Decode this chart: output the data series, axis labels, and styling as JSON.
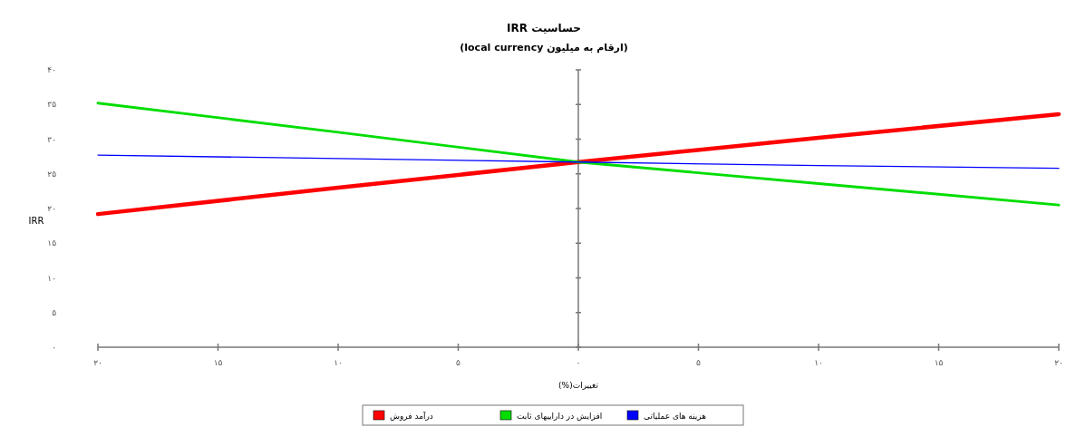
{
  "chart_data": {
    "type": "line",
    "title": "حساسیت IRR",
    "subtitle": "(ارقام به میلیون local currency)",
    "xlabel": "تغییرات(%)",
    "ylabel": "IRR",
    "x": [
      -20,
      -10,
      0,
      10,
      20
    ],
    "series": [
      {
        "name": "درآمد فروش",
        "color": "#ff0000",
        "values": [
          19.2,
          23.0,
          26.7,
          30.2,
          33.6
        ]
      },
      {
        "name": "افزایش در داراییهای ثابت",
        "color": "#00dd00",
        "values": [
          35.2,
          31.0,
          26.7,
          23.6,
          20.5
        ]
      },
      {
        "name": "هزینه های عملیاتی",
        "color": "#0000ff",
        "values": [
          27.7,
          27.2,
          26.7,
          26.2,
          25.8
        ]
      }
    ],
    "xlim": [
      -20,
      20
    ],
    "ylim": [
      0,
      40
    ],
    "xticks": [
      {
        "value": -20,
        "label": "۲۰"
      },
      {
        "value": -15,
        "label": "۱۵"
      },
      {
        "value": -10,
        "label": "۱۰"
      },
      {
        "value": -5,
        "label": "۵"
      },
      {
        "value": 0,
        "label": "۰"
      },
      {
        "value": 5,
        "label": "۵"
      },
      {
        "value": 10,
        "label": "۱۰"
      },
      {
        "value": 15,
        "label": "۱۵"
      },
      {
        "value": 20,
        "label": "۲۰"
      }
    ],
    "yticks": [
      {
        "value": 0,
        "label": "۰"
      },
      {
        "value": 5,
        "label": "۵"
      },
      {
        "value": 10,
        "label": "۱۰"
      },
      {
        "value": 15,
        "label": "۱۵"
      },
      {
        "value": 20,
        "label": "۲۰"
      },
      {
        "value": 25,
        "label": "۲۵"
      },
      {
        "value": 30,
        "label": "۳۰"
      },
      {
        "value": 35,
        "label": "۳۵"
      },
      {
        "value": 40,
        "label": "۴۰"
      }
    ],
    "legend": "bottom",
    "line_style": "solid"
  }
}
